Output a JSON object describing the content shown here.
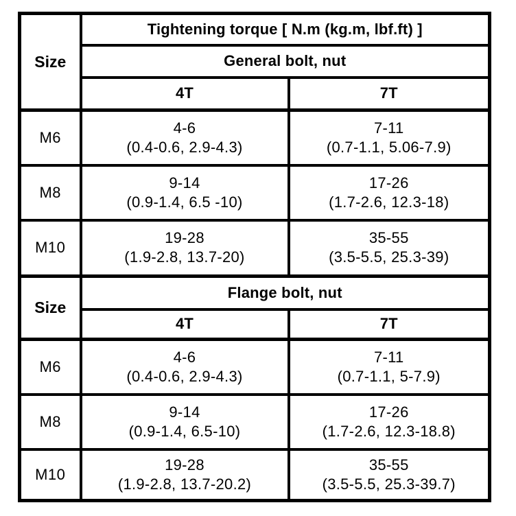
{
  "page": {
    "background": "#ffffff",
    "line_color": "#000000",
    "text_color": "#000000"
  },
  "table": {
    "title": "Tightening torque [ N.m (kg.m, lbf.ft) ]",
    "size_header_general": "Size",
    "size_header_flange": "Size",
    "sections": [
      {
        "label": "General bolt, nut",
        "col_4t": "4T",
        "col_7t": "7T",
        "rows": [
          {
            "size": "M6",
            "t4_range": "4-6",
            "t4_detail": "(0.4-0.6, 2.9-4.3)",
            "t7_range": "7-11",
            "t7_detail": "(0.7-1.1, 5.06-7.9)"
          },
          {
            "size": "M8",
            "t4_range": "9-14",
            "t4_detail": "(0.9-1.4, 6.5 -10)",
            "t7_range": "17-26",
            "t7_detail": "(1.7-2.6, 12.3-18)"
          },
          {
            "size": "M10",
            "t4_range": "19-28",
            "t4_detail": "(1.9-2.8, 13.7-20)",
            "t7_range": "35-55",
            "t7_detail": "(3.5-5.5, 25.3-39)"
          }
        ]
      },
      {
        "label": "Flange bolt, nut",
        "col_4t": "4T",
        "col_7t": "7T",
        "rows": [
          {
            "size": "M6",
            "t4_range": "4-6",
            "t4_detail": "(0.4-0.6, 2.9-4.3)",
            "t7_range": "7-11",
            "t7_detail": "(0.7-1.1, 5-7.9)"
          },
          {
            "size": "M8",
            "t4_range": "9-14",
            "t4_detail": "(0.9-1.4, 6.5-10)",
            "t7_range": "17-26",
            "t7_detail": "(1.7-2.6, 12.3-18.8)"
          },
          {
            "size": "M10",
            "t4_range": "19-28",
            "t4_detail": "(1.9-2.8, 13.7-20.2)",
            "t7_range": "35-55",
            "t7_detail": "(3.5-5.5, 25.3-39.7)"
          }
        ]
      }
    ]
  }
}
